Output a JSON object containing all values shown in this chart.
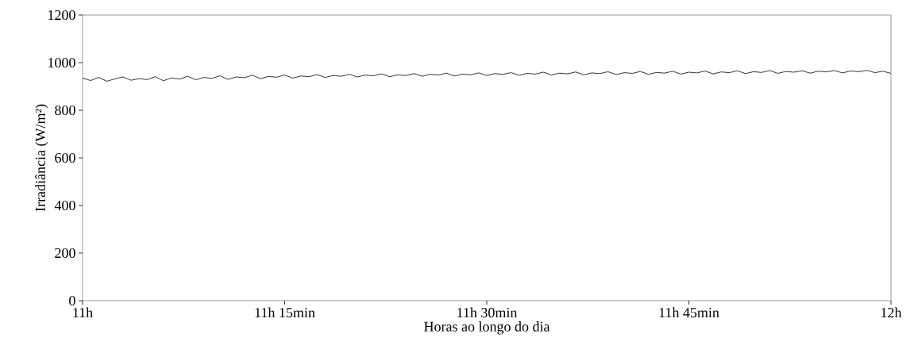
{
  "chart_data": {
    "type": "line",
    "xlabel": "Horas ao longo do dia",
    "ylabel": "Irradiância (W/m²)",
    "xlim": [
      11,
      12
    ],
    "ylim": [
      0,
      1200
    ],
    "xticks": [
      {
        "value": 11,
        "label": "11h"
      },
      {
        "value": 11.25,
        "label": "11h 15min"
      },
      {
        "value": 11.5,
        "label": "11h 30min"
      },
      {
        "value": 11.75,
        "label": "11h 45min"
      },
      {
        "value": 12,
        "label": "12h"
      }
    ],
    "yticks": [
      0,
      200,
      400,
      600,
      800,
      1000,
      1200
    ],
    "grid": false,
    "series": [
      {
        "color": "#000000",
        "line_style": "solid",
        "x": [
          11,
          11.01,
          11.02,
          11.03,
          11.04,
          11.05,
          11.06,
          11.07,
          11.08,
          11.09,
          11.1,
          11.11,
          11.12,
          11.13,
          11.14,
          11.15,
          11.16,
          11.17,
          11.18,
          11.19,
          11.2,
          11.21,
          11.22,
          11.23,
          11.24,
          11.25,
          11.26,
          11.27,
          11.28,
          11.29,
          11.3,
          11.31,
          11.32,
          11.33,
          11.34,
          11.35,
          11.36,
          11.37,
          11.38,
          11.39,
          11.4,
          11.41,
          11.42,
          11.43,
          11.44,
          11.45,
          11.46,
          11.47,
          11.48,
          11.49,
          11.5,
          11.51,
          11.52,
          11.53,
          11.54,
          11.55,
          11.56,
          11.57,
          11.58,
          11.59,
          11.6,
          11.61,
          11.62,
          11.63,
          11.64,
          11.65,
          11.66,
          11.67,
          11.68,
          11.69,
          11.7,
          11.71,
          11.72,
          11.73,
          11.74,
          11.75,
          11.76,
          11.77,
          11.78,
          11.79,
          11.8,
          11.81,
          11.82,
          11.83,
          11.84,
          11.85,
          11.86,
          11.87,
          11.88,
          11.89,
          11.9,
          11.91,
          11.92,
          11.93,
          11.94,
          11.95,
          11.96,
          11.97,
          11.98,
          11.99,
          12
        ],
        "values": [
          935,
          925,
          938,
          922,
          932,
          940,
          926,
          933,
          929,
          941,
          924,
          936,
          931,
          943,
          928,
          938,
          934,
          945,
          930,
          940,
          937,
          947,
          933,
          942,
          939,
          948,
          935,
          944,
          941,
          950,
          938,
          946,
          943,
          951,
          940,
          948,
          945,
          953,
          941,
          949,
          946,
          954,
          943,
          951,
          948,
          956,
          944,
          952,
          949,
          957,
          946,
          954,
          951,
          958,
          947,
          955,
          952,
          960,
          948,
          956,
          953,
          961,
          949,
          957,
          954,
          962,
          950,
          958,
          955,
          963,
          951,
          959,
          956,
          964,
          952,
          960,
          957,
          965,
          953,
          961,
          958,
          966,
          954,
          962,
          959,
          967,
          955,
          963,
          960,
          966,
          956,
          964,
          961,
          967,
          957,
          965,
          962,
          968,
          958,
          964,
          955
        ]
      }
    ]
  }
}
